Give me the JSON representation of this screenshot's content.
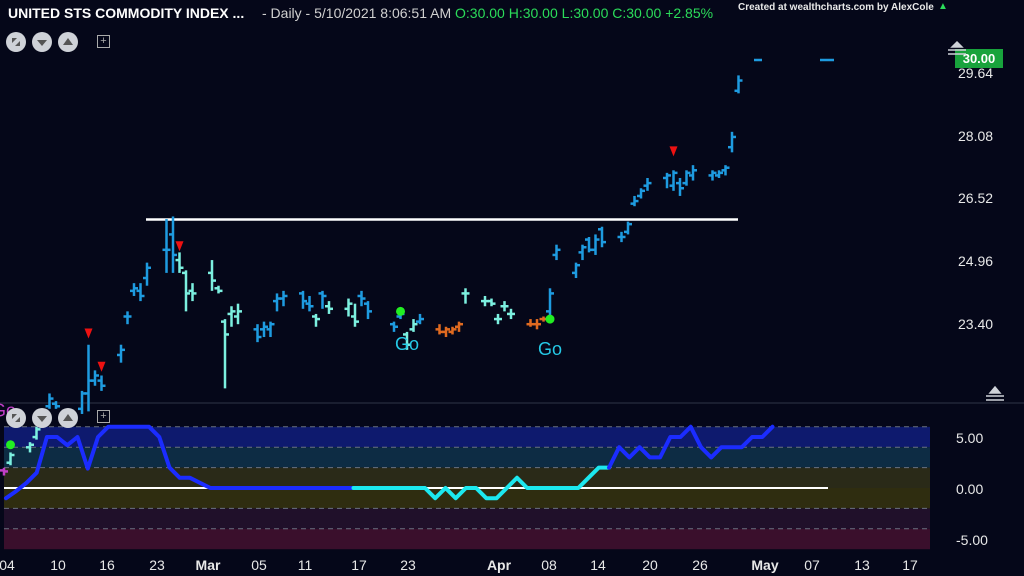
{
  "header": {
    "title": "UNITED STS COMMODITY INDEX ...",
    "interval": "- Daily - 5/10/2021 8:06:51 AM",
    "ohlc_o": "O:30.00",
    "ohlc_h": "H:30.00",
    "ohlc_l": "L:30.00",
    "ohlc_c": "C:30.00",
    "change": "+2.85%",
    "credit": "Created at wealthcharts.com by AlexCole",
    "last_price": "30.00"
  },
  "colors": {
    "background": "#050719",
    "strong_up": "#1e9be0",
    "weak_up": "#7cf0e0",
    "weak_down": "#e06a20",
    "strong_down": "#c23ec8",
    "resistance": "#ffffff",
    "signal_dot": "#22ee22",
    "go_text": "#25c9e6",
    "countertrend_arrow": "#ee1111",
    "osc_strong": "#1b2cff",
    "osc_weak": "#1ce8ef",
    "osc_zero": "#ffffff"
  },
  "chart_data": [
    {
      "type": "ohlc",
      "title": "UNITED STS COMMODITY INDEX ...",
      "x_ticks": [
        "04",
        "10",
        "16",
        "23",
        "Mar",
        "05",
        "11",
        "17",
        "23",
        "Apr",
        "08",
        "14",
        "20",
        "26",
        "May",
        "07",
        "13",
        "17"
      ],
      "y_ticks": [
        "29.64",
        "28.08",
        "26.52",
        "24.96",
        "23.40"
      ],
      "ylim": [
        22.0,
        30.5
      ],
      "last_price": 30.0,
      "resistance_level": 26.89,
      "bars": [
        {
          "date": "2021-02-04",
          "o": 22.0,
          "h": 22.05,
          "l": 21.9,
          "c": 21.98,
          "trend": "strong_down"
        },
        {
          "date": "2021-02-05",
          "o": 22.15,
          "h": 22.35,
          "l": 22.1,
          "c": 22.3,
          "trend": "weak_up"
        },
        {
          "date": "2021-02-08",
          "o": 22.45,
          "h": 22.55,
          "l": 22.35,
          "c": 22.5,
          "trend": "weak_up"
        },
        {
          "date": "2021-02-09",
          "o": 22.65,
          "h": 22.85,
          "l": 22.6,
          "c": 22.8,
          "trend": "weak_up"
        },
        {
          "date": "2021-02-10",
          "o": 22.9,
          "h": 23.05,
          "l": 22.85,
          "c": 23.0,
          "trend": "strong_up"
        },
        {
          "date": "2021-02-11",
          "o": 23.25,
          "h": 23.5,
          "l": 23.2,
          "c": 23.4,
          "trend": "strong_up"
        },
        {
          "date": "2021-02-12",
          "o": 23.3,
          "h": 23.35,
          "l": 23.2,
          "c": 23.25,
          "trend": "strong_up"
        },
        {
          "date": "2021-02-16",
          "o": 23.2,
          "h": 23.55,
          "l": 23.1,
          "c": 23.5,
          "trend": "strong_up"
        },
        {
          "date": "2021-02-17",
          "o": 23.5,
          "h": 24.45,
          "l": 23.15,
          "c": 23.75,
          "trend": "strong_up"
        },
        {
          "date": "2021-02-18",
          "o": 23.75,
          "h": 23.95,
          "l": 23.65,
          "c": 23.85,
          "trend": "strong_up"
        },
        {
          "date": "2021-02-19",
          "o": 23.75,
          "h": 23.85,
          "l": 23.55,
          "c": 23.65,
          "trend": "strong_up"
        },
        {
          "date": "2021-02-22",
          "o": 24.25,
          "h": 24.45,
          "l": 24.1,
          "c": 24.35,
          "trend": "strong_up"
        },
        {
          "date": "2021-02-23",
          "o": 25.0,
          "h": 25.1,
          "l": 24.85,
          "c": 25.0,
          "trend": "strong_up"
        },
        {
          "date": "2021-02-24",
          "o": 25.5,
          "h": 25.65,
          "l": 25.4,
          "c": 25.55,
          "trend": "strong_up"
        },
        {
          "date": "2021-02-25",
          "o": 25.5,
          "h": 25.65,
          "l": 25.3,
          "c": 25.4,
          "trend": "strong_up"
        },
        {
          "date": "2021-02-26",
          "o": 25.75,
          "h": 26.05,
          "l": 25.6,
          "c": 25.95,
          "trend": "strong_up"
        },
        {
          "date": "2021-03-01",
          "o": 26.3,
          "h": 26.9,
          "l": 25.85,
          "c": 26.3,
          "trend": "strong_up"
        },
        {
          "date": "2021-03-02",
          "o": 26.6,
          "h": 26.95,
          "l": 25.85,
          "c": 26.2,
          "trend": "strong_up"
        },
        {
          "date": "2021-03-03",
          "o": 26.1,
          "h": 26.25,
          "l": 25.85,
          "c": 25.95,
          "trend": "weak_up"
        },
        {
          "date": "2021-03-04",
          "o": 25.85,
          "h": 25.9,
          "l": 25.1,
          "c": 25.45,
          "trend": "weak_up"
        },
        {
          "date": "2021-03-05",
          "o": 25.5,
          "h": 25.65,
          "l": 25.3,
          "c": 25.45,
          "trend": "weak_up"
        },
        {
          "date": "2021-03-08",
          "o": 25.85,
          "h": 26.1,
          "l": 25.5,
          "c": 25.7,
          "trend": "weak_up"
        },
        {
          "date": "2021-03-09",
          "o": 25.55,
          "h": 25.6,
          "l": 25.45,
          "c": 25.5,
          "trend": "weak_up"
        },
        {
          "date": "2021-03-10",
          "o": 24.9,
          "h": 24.95,
          "l": 23.6,
          "c": 24.65,
          "trend": "weak_up"
        },
        {
          "date": "2021-03-11",
          "o": 25.05,
          "h": 25.2,
          "l": 24.8,
          "c": 25.1,
          "trend": "weak_up"
        },
        {
          "date": "2021-03-12",
          "o": 25.0,
          "h": 25.25,
          "l": 24.85,
          "c": 25.1,
          "trend": "weak_up"
        },
        {
          "date": "2021-03-15",
          "o": 24.75,
          "h": 24.85,
          "l": 24.5,
          "c": 24.6,
          "trend": "strong_up"
        },
        {
          "date": "2021-03-16",
          "o": 24.75,
          "h": 24.9,
          "l": 24.6,
          "c": 24.8,
          "trend": "strong_up"
        },
        {
          "date": "2021-03-17",
          "o": 24.75,
          "h": 24.9,
          "l": 24.6,
          "c": 24.85,
          "trend": "strong_up"
        },
        {
          "date": "2021-03-18",
          "o": 25.3,
          "h": 25.45,
          "l": 25.1,
          "c": 25.35,
          "trend": "strong_up"
        },
        {
          "date": "2021-03-19",
          "o": 25.35,
          "h": 25.5,
          "l": 25.2,
          "c": 25.4,
          "trend": "strong_up"
        },
        {
          "date": "2021-03-22",
          "o": 25.45,
          "h": 25.5,
          "l": 25.15,
          "c": 25.3,
          "trend": "strong_up"
        },
        {
          "date": "2021-03-23",
          "o": 25.25,
          "h": 25.4,
          "l": 25.1,
          "c": 25.2,
          "trend": "strong_up"
        },
        {
          "date": "2021-03-24",
          "o": 25.0,
          "h": 25.05,
          "l": 24.8,
          "c": 24.95,
          "trend": "weak_up"
        },
        {
          "date": "2021-03-25",
          "o": 25.45,
          "h": 25.5,
          "l": 25.15,
          "c": 25.4,
          "trend": "strong_up"
        },
        {
          "date": "2021-03-26",
          "o": 25.2,
          "h": 25.3,
          "l": 25.05,
          "c": 25.15,
          "trend": "weak_up"
        },
        {
          "date": "2021-03-29",
          "o": 25.15,
          "h": 25.35,
          "l": 25.0,
          "c": 25.25,
          "trend": "weak_up"
        },
        {
          "date": "2021-03-30",
          "o": 25.0,
          "h": 25.25,
          "l": 24.8,
          "c": 24.9,
          "trend": "weak_up"
        },
        {
          "date": "2021-03-31",
          "o": 25.4,
          "h": 25.5,
          "l": 25.2,
          "c": 25.35,
          "trend": "strong_up"
        },
        {
          "date": "2021-04-01",
          "o": 25.25,
          "h": 25.3,
          "l": 24.95,
          "c": 25.1,
          "trend": "strong_up"
        },
        {
          "date": "2021-04-05",
          "o": 24.85,
          "h": 24.9,
          "l": 24.7,
          "c": 24.8,
          "trend": "strong_up"
        },
        {
          "date": "2021-04-06",
          "o": 25.0,
          "h": 25.15,
          "l": 24.95,
          "c": 25.05,
          "trend": "strong_up"
        },
        {
          "date": "2021-04-07",
          "o": 24.65,
          "h": 24.7,
          "l": 24.35,
          "c": 24.45,
          "trend": "weak_up"
        },
        {
          "date": "2021-04-08",
          "o": 24.75,
          "h": 24.95,
          "l": 24.7,
          "c": 24.85,
          "trend": "weak_up"
        },
        {
          "date": "2021-04-09",
          "o": 24.9,
          "h": 25.05,
          "l": 24.85,
          "c": 24.95,
          "trend": "strong_up"
        },
        {
          "date": "2021-04-12",
          "o": 24.75,
          "h": 24.85,
          "l": 24.65,
          "c": 24.7,
          "trend": "weak_down"
        },
        {
          "date": "2021-04-13",
          "o": 24.7,
          "h": 24.8,
          "l": 24.6,
          "c": 24.75,
          "trend": "weak_down"
        },
        {
          "date": "2021-04-14",
          "o": 24.7,
          "h": 24.8,
          "l": 24.65,
          "c": 24.75,
          "trend": "weak_down"
        },
        {
          "date": "2021-04-15",
          "o": 24.8,
          "h": 24.9,
          "l": 24.7,
          "c": 24.85,
          "trend": "weak_down"
        },
        {
          "date": "2021-04-16",
          "o": 25.45,
          "h": 25.55,
          "l": 25.25,
          "c": 25.45,
          "trend": "weak_up"
        },
        {
          "date": "2021-04-19",
          "o": 25.3,
          "h": 25.4,
          "l": 25.2,
          "c": 25.3,
          "trend": "weak_up"
        },
        {
          "date": "2021-04-20",
          "o": 25.3,
          "h": 25.35,
          "l": 25.2,
          "c": 25.25,
          "trend": "weak_up"
        },
        {
          "date": "2021-04-21",
          "o": 24.95,
          "h": 25.05,
          "l": 24.85,
          "c": 24.95,
          "trend": "weak_up"
        },
        {
          "date": "2021-04-22",
          "o": 25.2,
          "h": 25.3,
          "l": 25.1,
          "c": 25.2,
          "trend": "weak_up"
        },
        {
          "date": "2021-04-23",
          "o": 25.05,
          "h": 25.15,
          "l": 24.95,
          "c": 25.05,
          "trend": "weak_up"
        },
        {
          "date": "2021-04-26",
          "o": 24.85,
          "h": 24.95,
          "l": 24.8,
          "c": 24.85,
          "trend": "weak_down"
        },
        {
          "date": "2021-04-27",
          "o": 24.85,
          "h": 24.95,
          "l": 24.75,
          "c": 24.85,
          "trend": "weak_down"
        },
        {
          "date": "2021-04-28",
          "o": 24.95,
          "h": 25.0,
          "l": 24.9,
          "c": 24.95,
          "trend": "weak_down"
        },
        {
          "date": "2021-04-29",
          "o": 25.1,
          "h": 25.55,
          "l": 25.0,
          "c": 25.45,
          "trend": "strong_up"
        },
        {
          "date": "2021-04-30",
          "o": 26.2,
          "h": 26.4,
          "l": 26.1,
          "c": 26.3,
          "trend": "strong_up"
        },
        {
          "date": "2021-05-03",
          "o": 25.85,
          "h": 26.05,
          "l": 25.75,
          "c": 26.0,
          "trend": "strong_up"
        },
        {
          "date": "2021-05-04",
          "o": 26.25,
          "h": 26.4,
          "l": 26.1,
          "c": 26.35,
          "trend": "strong_up"
        },
        {
          "date": "2021-05-05",
          "o": 26.5,
          "h": 26.55,
          "l": 26.25,
          "c": 26.3,
          "trend": "strong_up"
        },
        {
          "date": "2021-05-06",
          "o": 26.3,
          "h": 26.6,
          "l": 26.2,
          "c": 26.5,
          "trend": "strong_up"
        },
        {
          "date": "2021-05-07",
          "o": 26.7,
          "h": 26.75,
          "l": 26.35,
          "c": 26.45,
          "trend": "strong_up"
        },
        {
          "date": "2021-05-10",
          "o": 26.55,
          "h": 26.65,
          "l": 26.45,
          "c": 26.55,
          "trend": "strong_up"
        },
        {
          "date": "2021-05-11",
          "o": 26.65,
          "h": 26.85,
          "l": 26.6,
          "c": 26.8,
          "trend": "strong_up"
        },
        {
          "date": "2021-05-12",
          "o": 27.2,
          "h": 27.35,
          "l": 27.15,
          "c": 27.25,
          "trend": "strong_up"
        },
        {
          "date": "2021-05-13",
          "o": 27.35,
          "h": 27.5,
          "l": 27.3,
          "c": 27.45,
          "trend": "strong_up"
        },
        {
          "date": "2021-05-14",
          "o": 27.55,
          "h": 27.7,
          "l": 27.45,
          "c": 27.6,
          "trend": "strong_up"
        },
        {
          "date": "2021-05-17",
          "o": 27.7,
          "h": 27.8,
          "l": 27.5,
          "c": 27.75,
          "trend": "strong_up"
        },
        {
          "date": "2021-05-18",
          "o": 27.55,
          "h": 27.85,
          "l": 27.45,
          "c": 27.8,
          "trend": "strong_up"
        },
        {
          "date": "2021-05-19",
          "o": 27.6,
          "h": 27.7,
          "l": 27.35,
          "c": 27.5,
          "trend": "strong_up"
        },
        {
          "date": "2021-05-20",
          "o": 27.6,
          "h": 27.85,
          "l": 27.55,
          "c": 27.8,
          "trend": "strong_up"
        },
        {
          "date": "2021-05-21",
          "o": 27.75,
          "h": 27.95,
          "l": 27.65,
          "c": 27.85,
          "trend": "strong_up"
        },
        {
          "date": "2021-05-24",
          "o": 27.75,
          "h": 27.85,
          "l": 27.65,
          "c": 27.8,
          "trend": "strong_up"
        },
        {
          "date": "2021-05-25",
          "o": 27.75,
          "h": 27.85,
          "l": 27.7,
          "c": 27.8,
          "trend": "strong_up"
        },
        {
          "date": "2021-05-26",
          "o": 27.85,
          "h": 27.95,
          "l": 27.75,
          "c": 27.9,
          "trend": "strong_up"
        },
        {
          "date": "2021-05-27",
          "o": 28.3,
          "h": 28.6,
          "l": 28.2,
          "c": 28.5,
          "trend": "strong_up"
        },
        {
          "date": "2021-05-28",
          "o": 29.4,
          "h": 29.7,
          "l": 29.35,
          "c": 29.6,
          "trend": "strong_up"
        },
        {
          "date": "2021-05-31",
          "o": 30.0,
          "h": 30.0,
          "l": 30.0,
          "c": 30.0,
          "trend": "strong_up"
        }
      ],
      "signals": [
        {
          "type": "go_dot",
          "date": "2021-02-05",
          "price": 22.5
        },
        {
          "type": "go_dot",
          "date": "2021-04-06",
          "price": 25.1
        },
        {
          "type": "go_dot",
          "date": "2021-04-29",
          "price": 24.95
        },
        {
          "type": "go_text",
          "text": "Go",
          "date": "2021-04-07",
          "price": 24.35
        },
        {
          "type": "go_text",
          "text": "Go",
          "date": "2021-04-29",
          "price": 24.25
        },
        {
          "type": "go_text_partial",
          "text": "Go",
          "date": "2021-02-04",
          "price": 23.05
        },
        {
          "type": "countertrend_arrow",
          "date": "2021-02-17",
          "price": 24.65
        },
        {
          "type": "countertrend_arrow",
          "date": "2021-02-19",
          "price": 24.0
        },
        {
          "type": "countertrend_arrow",
          "date": "2021-03-03",
          "price": 26.35
        },
        {
          "type": "countertrend_arrow",
          "date": "2021-05-18",
          "price": 28.2
        }
      ]
    },
    {
      "type": "line",
      "title": "",
      "y_ticks": [
        "5.00",
        "0.00",
        "-5.00"
      ],
      "ylim": [
        -6.0,
        6.0
      ],
      "zero_line": 0,
      "series": [
        {
          "segment": "strong",
          "values": [
            -1.0,
            -0.3,
            0.5,
            1.5,
            5.0,
            5.0,
            4.2,
            5.0,
            1.9,
            5.0,
            6.0,
            6.0,
            6.0,
            6.0,
            6.0,
            5.0,
            2.0,
            1.0,
            1.0,
            0.5,
            0,
            0,
            0,
            0,
            0,
            0,
            0,
            0,
            0,
            0,
            0,
            0,
            0,
            0,
            0
          ]
        },
        {
          "segment": "weak",
          "values": [
            0,
            0,
            0,
            0,
            0,
            0,
            0,
            0,
            -1.0,
            0,
            -1.0,
            0,
            0,
            -1.0,
            -1.0,
            0,
            1.0,
            0,
            0,
            0,
            0,
            0,
            0,
            1.0,
            2.0,
            2.0
          ]
        },
        {
          "segment": "strong",
          "values": [
            2.0,
            4.0,
            3.0,
            4.0,
            3.0,
            3.0,
            5.0,
            5.0,
            6.0,
            4.0,
            3.0,
            4.0,
            4.0,
            4.0,
            5.0,
            5.0,
            6.0
          ]
        }
      ]
    }
  ]
}
